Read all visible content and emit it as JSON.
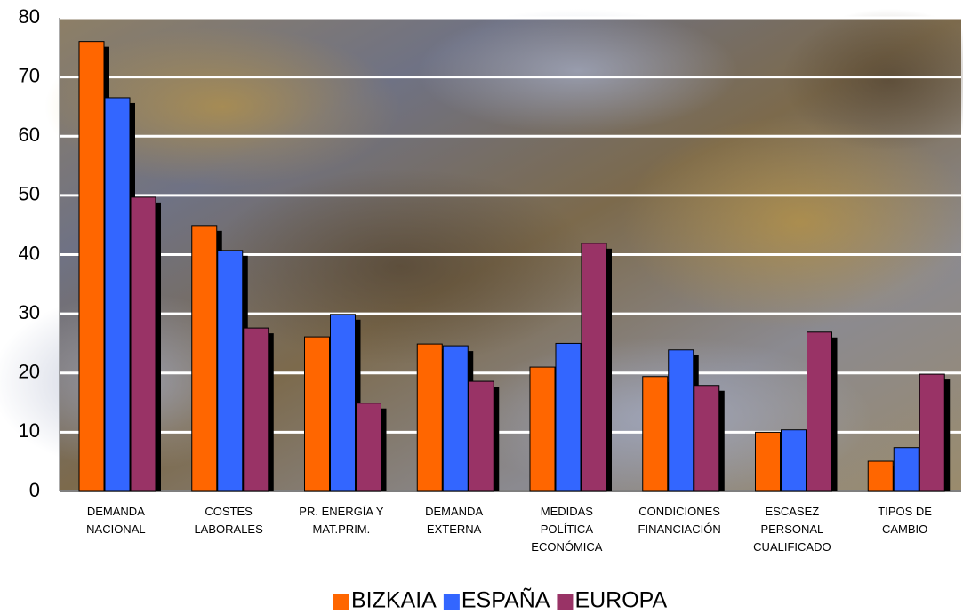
{
  "chart_data": {
    "type": "bar",
    "categories": [
      "DEMANDA\nNACIONAL",
      "COSTES\nLABORALES",
      "PR. ENERGÍA Y\nMAT.PRIM.",
      "DEMANDA\nEXTERNA",
      "MEDIDAS\nPOLÍTICA\nECONÓMICA",
      "CONDICIONES\nFINANCIACIÓN",
      "ESCASEZ\nPERSONAL\nCUALIFICADO",
      "TIPOS DE\nCAMBIO"
    ],
    "series": [
      {
        "name": "BIZKAIA",
        "color": "#ff6600",
        "values": [
          76,
          44.9,
          26.1,
          24.9,
          21,
          19.4,
          10,
          5.1
        ]
      },
      {
        "name": "ESPAÑA",
        "color": "#3366ff",
        "values": [
          66.5,
          40.7,
          29.9,
          24.6,
          25,
          23.9,
          10.4,
          7.4
        ]
      },
      {
        "name": "EUROPA",
        "color": "#993366",
        "values": [
          49.7,
          27.6,
          14.9,
          18.6,
          41.9,
          17.9,
          26.9,
          19.8
        ]
      }
    ],
    "ylim": [
      0,
      80
    ],
    "yticks": [
      0,
      10,
      20,
      30,
      40,
      50,
      60,
      70,
      80
    ],
    "grid": true,
    "legend": "bottom"
  }
}
